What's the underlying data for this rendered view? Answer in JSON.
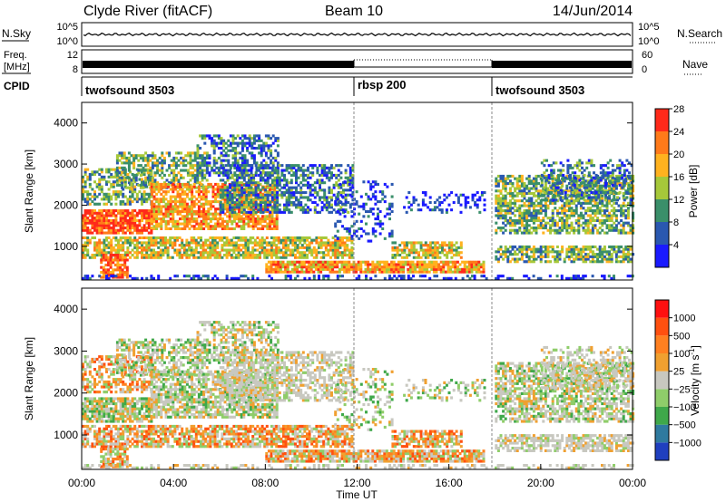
{
  "header": {
    "title": "Clyde River (fitACF)",
    "beam": "Beam 10",
    "date": "14/Jun/2014"
  },
  "chart_data": [
    {
      "type": "line",
      "panel": "noise",
      "left_label": "N.Sky",
      "right_label": "N.Search",
      "left_ticks": [
        "10^5",
        "10^0"
      ],
      "right_ticks": [
        "10^5",
        "10^0"
      ]
    },
    {
      "type": "line",
      "panel": "freq",
      "left_label_top": "Freq.",
      "left_label_bottom": "[MHz]",
      "left_ticks": [
        "12",
        "8"
      ],
      "right_label": "Nave",
      "right_ticks": [
        "60",
        "0"
      ],
      "cpid_label": "CPID",
      "cpid_segments": [
        {
          "name": "twofsound 3503",
          "start_hour": 0,
          "end_hour": 12
        },
        {
          "name": "rbsp 200",
          "start_hour": 12,
          "end_hour": 18
        },
        {
          "name": "twofsound 3503",
          "start_hour": 18,
          "end_hour": 24
        }
      ]
    },
    {
      "type": "heatmap",
      "panel": "power",
      "ylabel": "Slant Range [km]",
      "yticks": [
        1000,
        2000,
        3000,
        4000
      ],
      "ylim": [
        180,
        4500
      ],
      "colorbar_label": "Power [dB]",
      "colorbar_ticks": [
        "4",
        "8",
        "12",
        "16",
        "20",
        "24",
        "28"
      ],
      "colorbar_colors": [
        "#1a1aff",
        "#2a58b0",
        "#3a8f6a",
        "#a6c83a",
        "#ffb21f",
        "#ff7a1a",
        "#ff2a1a"
      ]
    },
    {
      "type": "heatmap",
      "panel": "velocity",
      "ylabel": "Slant Range [km]",
      "yticks": [
        1000,
        2000,
        3000,
        4000
      ],
      "ylim": [
        180,
        4500
      ],
      "colorbar_label": "Velocity [m s",
      "colorbar_unit_sup": "-1",
      "colorbar_label_end": "]",
      "colorbar_ticks": [
        "1000",
        "500",
        "100",
        "25",
        "−25",
        "−100",
        "−500",
        "−1000"
      ],
      "colorbar_colors": [
        "#1f3fbf",
        "#2f7a9f",
        "#3fa84a",
        "#8fcd6a",
        "#c8c8c0",
        "#f0a030",
        "#ff8020",
        "#ff5010",
        "#ff1010"
      ],
      "xticks": [
        "00:00",
        "04:00",
        "08:00",
        "12:00",
        "16:00",
        "20:00",
        "00:00"
      ],
      "xlabel": "Time UT",
      "xlim": [
        0,
        24
      ]
    }
  ]
}
